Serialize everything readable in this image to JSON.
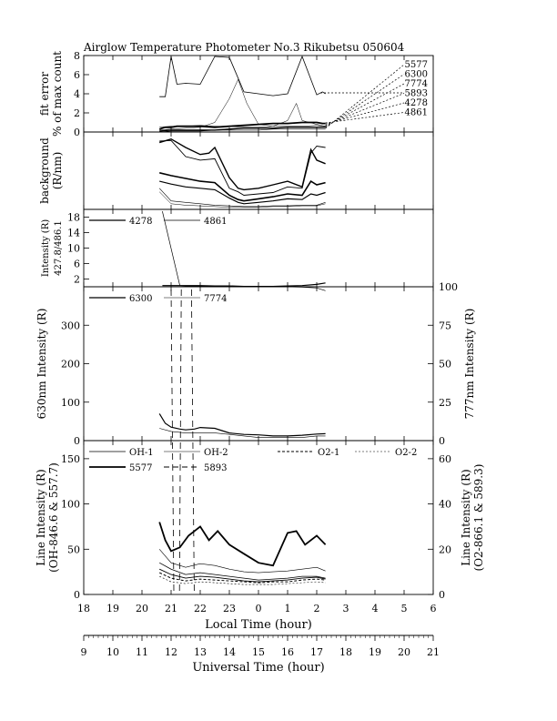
{
  "title": "Airglow Temperature Photometer No.3  Rikubetsu  050604",
  "chart_data": [
    {
      "type": "line",
      "panel": "fit error",
      "ylabel_lines": [
        "fit error",
        "% of max count"
      ],
      "ylim": [
        0,
        8
      ],
      "yticks": [
        0,
        2,
        4,
        6,
        8
      ],
      "series": [
        {
          "name": "5577",
          "x": [
            20.6,
            20.8,
            21.0,
            21.2,
            21.5,
            22.0,
            22.5,
            23.0,
            23.5,
            0.0,
            0.5,
            1.0,
            1.5,
            2.0,
            2.2,
            2.3
          ],
          "y": [
            0.3,
            0.5,
            0.5,
            0.6,
            0.6,
            0.6,
            0.5,
            0.6,
            0.7,
            0.8,
            0.9,
            0.9,
            1.0,
            1.0,
            0.9,
            0.9
          ]
        },
        {
          "name": "6300",
          "x": [
            20.6,
            20.8,
            21.0,
            21.2,
            21.5,
            22.0,
            22.5,
            23.0,
            23.5,
            0.0,
            0.5,
            1.0,
            1.5,
            2.0,
            2.2,
            2.3
          ],
          "y": [
            3.7,
            3.7,
            7.9,
            5.0,
            5.1,
            5.0,
            7.9,
            7.8,
            4.2,
            4.0,
            3.8,
            4.0,
            7.9,
            3.9,
            4.2,
            4.0
          ]
        },
        {
          "name": "7774",
          "x": [
            20.6,
            21.0,
            21.5,
            22.0,
            22.5,
            23.0,
            23.5,
            0.0,
            0.5,
            1.0,
            1.5,
            2.0,
            2.3
          ],
          "y": [
            0.5,
            0.6,
            0.6,
            0.7,
            0.6,
            0.6,
            0.5,
            0.5,
            0.6,
            0.6,
            0.6,
            0.7,
            0.6
          ]
        },
        {
          "name": "5893",
          "x": [
            20.6,
            21.0,
            21.5,
            22.0,
            22.5,
            23.0,
            23.3,
            23.6,
            0.0,
            0.5,
            1.0,
            1.3,
            1.5,
            2.0,
            2.3
          ],
          "y": [
            0.2,
            0.3,
            0.4,
            0.5,
            1.0,
            3.5,
            5.5,
            3.0,
            0.8,
            0.6,
            1.2,
            3.0,
            1.2,
            0.8,
            0.6
          ]
        },
        {
          "name": "4278",
          "x": [
            20.6,
            21.0,
            21.5,
            22.0,
            22.5,
            23.0,
            23.5,
            0.0,
            0.5,
            1.0,
            1.5,
            2.0,
            2.3
          ],
          "y": [
            0.1,
            0.2,
            0.2,
            0.2,
            0.2,
            0.3,
            0.4,
            0.4,
            0.4,
            0.5,
            0.5,
            0.5,
            0.5
          ]
        },
        {
          "name": "4861",
          "x": [
            20.6,
            21.0,
            21.5,
            22.0,
            22.5,
            23.0,
            23.5,
            0.0,
            0.5,
            1.0,
            1.5,
            2.0,
            2.3
          ],
          "y": [
            0.0,
            0.1,
            0.1,
            0.1,
            0.2,
            0.2,
            0.2,
            0.2,
            0.3,
            0.3,
            0.3,
            0.3,
            0.3
          ]
        }
      ],
      "legend_labels": [
        "5577",
        "6300",
        "7774",
        "5893",
        "4278",
        "4861"
      ],
      "legend_placement": "right, outside plot"
    },
    {
      "type": "line",
      "panel": "background",
      "ylabel_lines": [
        "background",
        "(R/nm)"
      ],
      "series": [
        {
          "x": [
            20.6,
            21.0,
            21.5,
            22.0,
            22.3,
            22.5,
            23.0,
            23.3,
            23.5,
            0.0,
            0.5,
            1.0,
            1.5,
            1.8,
            2.0,
            2.3
          ],
          "y": [
            95,
            100,
            88,
            78,
            80,
            88,
            45,
            30,
            28,
            30,
            35,
            40,
            32,
            85,
            70,
            65
          ]
        },
        {
          "x": [
            20.6,
            21.0,
            21.5,
            22.0,
            22.5,
            23.0,
            23.3,
            23.5,
            0.0,
            0.5,
            1.0,
            1.5,
            1.8,
            2.0,
            2.3
          ],
          "y": [
            97,
            98,
            75,
            70,
            72,
            30,
            25,
            20,
            22,
            24,
            32,
            30,
            80,
            90,
            88
          ]
        },
        {
          "x": [
            20.6,
            21.0,
            21.5,
            22.0,
            22.5,
            23.0,
            23.3,
            23.5,
            0.0,
            0.5,
            1.0,
            1.5,
            1.8,
            2.0,
            2.3
          ],
          "y": [
            52,
            48,
            44,
            40,
            38,
            20,
            14,
            12,
            15,
            18,
            22,
            20,
            40,
            35,
            38
          ]
        },
        {
          "x": [
            20.6,
            21.0,
            21.5,
            22.0,
            22.5,
            23.0,
            23.3,
            23.5,
            0.0,
            0.5,
            1.0,
            1.5,
            1.8,
            2.0,
            2.3
          ],
          "y": [
            40,
            36,
            32,
            30,
            28,
            16,
            10,
            8,
            10,
            12,
            15,
            14,
            22,
            20,
            24
          ]
        },
        {
          "x": [
            20.6,
            21.0,
            21.5,
            22.0,
            22.5,
            23.0,
            23.5,
            0.0,
            0.5,
            1.0,
            1.5,
            2.0,
            2.3
          ],
          "y": [
            30,
            12,
            10,
            8,
            6,
            5,
            4,
            4,
            5,
            5,
            6,
            6,
            10
          ]
        },
        {
          "x": [
            20.6,
            21.0,
            21.5,
            22.0,
            22.5,
            23.0,
            23.5,
            0.0,
            0.5,
            1.0,
            1.5,
            2.0,
            2.3
          ],
          "y": [
            25,
            8,
            6,
            5,
            4,
            3,
            3,
            3,
            4,
            4,
            5,
            5,
            8
          ]
        }
      ]
    },
    {
      "type": "line",
      "panel": "427.8/486.1 intensity",
      "ylabel_lines": [
        "Intensity (R)",
        "427.8/486.1"
      ],
      "ylim": [
        0,
        20
      ],
      "yticks": [
        2,
        6,
        10,
        14,
        18
      ],
      "series": [
        {
          "name": "4278",
          "x": [
            20.7,
            21.0,
            21.5,
            22.0,
            22.5,
            23.0,
            23.5,
            0.0,
            0.5,
            1.0,
            1.5,
            2.0,
            2.3
          ],
          "y": [
            0.3,
            0.3,
            0.3,
            0.3,
            0.2,
            0.2,
            0.1,
            0.1,
            0.1,
            0.2,
            0.3,
            0.6,
            1.0
          ]
        },
        {
          "name": "4861",
          "x": [
            20.7,
            21.3,
            21.5,
            22.0,
            22.5,
            23.0,
            23.5,
            0.0,
            0.5,
            1.0,
            1.5,
            2.0,
            2.3
          ],
          "y": [
            19.5,
            0.3,
            0.2,
            0.2,
            0.2,
            0.1,
            0.1,
            0.1,
            0.0,
            0.0,
            -0.1,
            -0.3,
            -1.0
          ]
        }
      ]
    },
    {
      "type": "line",
      "panel": "630/777 intensity",
      "ylabel": "630nm Intensity (R)",
      "y2label": "777nm Intensity (R)",
      "ylim": [
        0,
        400
      ],
      "yticks": [
        0,
        100,
        200,
        300
      ],
      "y2lim": [
        0,
        100
      ],
      "y2ticks": [
        0,
        25,
        50,
        75,
        100
      ],
      "series": [
        {
          "name": "6300",
          "axis": "left",
          "x": [
            20.6,
            20.8,
            21.0,
            21.3,
            21.5,
            21.8,
            22.0,
            22.5,
            23.0,
            23.5,
            0.0,
            0.5,
            1.0,
            1.5,
            2.0,
            2.3
          ],
          "y": [
            70,
            45,
            35,
            30,
            28,
            30,
            34,
            32,
            20,
            16,
            15,
            12,
            12,
            14,
            17,
            18
          ]
        },
        {
          "name": "7774",
          "axis": "right",
          "x": [
            20.6,
            21.0,
            21.5,
            22.0,
            22.5,
            23.0,
            23.5,
            0.0,
            0.5,
            1.0,
            1.5,
            2.0,
            2.3
          ],
          "y": [
            8,
            6,
            5,
            5,
            5,
            4,
            3,
            2,
            2,
            2,
            2,
            3,
            3
          ]
        }
      ]
    },
    {
      "type": "line",
      "panel": "line intensity",
      "ylabel_lines": [
        "Line Intensity (R)",
        "(OH-846.6 & 557.7)"
      ],
      "y2label_lines": [
        "Line Intensity (R)",
        "(O2-866.1 & 589.3)"
      ],
      "ylim": [
        0,
        170
      ],
      "yticks": [
        0,
        50,
        100,
        150
      ],
      "y2lim": [
        0,
        68
      ],
      "y2ticks": [
        0,
        20,
        40,
        60
      ],
      "series": [
        {
          "name": "OH-1",
          "x": [
            20.6,
            21.0,
            21.5,
            22.0,
            22.5,
            23.0,
            23.5,
            0.0,
            0.5,
            1.0,
            1.5,
            2.0,
            2.3
          ],
          "y": [
            35,
            28,
            22,
            24,
            22,
            20,
            18,
            16,
            17,
            18,
            20,
            20,
            18
          ]
        },
        {
          "name": "OH-2",
          "x": [
            20.6,
            21.0,
            21.5,
            22.0,
            22.5,
            23.0,
            23.5,
            0.0,
            0.5,
            1.0,
            1.5,
            2.0,
            2.3
          ],
          "y": [
            50,
            35,
            30,
            34,
            32,
            28,
            25,
            24,
            25,
            26,
            28,
            30,
            26
          ]
        },
        {
          "name": "O2-1",
          "x": [
            20.6,
            21.0,
            21.5,
            22.0,
            22.5,
            23.0,
            23.5,
            0.0,
            0.5,
            1.0,
            1.5,
            2.0,
            2.3
          ],
          "y": [
            24,
            18,
            15,
            17,
            16,
            15,
            14,
            13,
            14,
            14,
            16,
            17,
            16
          ]
        },
        {
          "name": "O2-2",
          "x": [
            20.6,
            21.0,
            21.5,
            22.0,
            22.5,
            23.0,
            23.5,
            0.0,
            0.5,
            1.0,
            1.5,
            2.0,
            2.3
          ],
          "y": [
            20,
            14,
            12,
            14,
            13,
            12,
            11,
            11,
            11,
            12,
            13,
            14,
            13
          ]
        },
        {
          "name": "5577",
          "x": [
            20.6,
            20.8,
            21.0,
            21.3,
            21.6,
            22.0,
            22.3,
            22.6,
            23.0,
            23.5,
            0.0,
            0.5,
            1.0,
            1.3,
            1.6,
            2.0,
            2.3
          ],
          "y": [
            80,
            60,
            48,
            52,
            65,
            75,
            60,
            70,
            55,
            45,
            35,
            32,
            68,
            70,
            55,
            65,
            55
          ]
        },
        {
          "name": "5893",
          "x": [
            20.6,
            21.0,
            21.5,
            22.0,
            22.5,
            23.0,
            23.5,
            0.0,
            0.5,
            1.0,
            1.5,
            2.0,
            2.3
          ],
          "y": [
            28,
            22,
            18,
            20,
            19,
            17,
            15,
            14,
            15,
            16,
            18,
            19,
            17
          ]
        }
      ],
      "legend_placement": "top"
    }
  ],
  "x_axes": {
    "local_time_label": "Local Time (hour)",
    "local_time_ticks": [
      "18",
      "19",
      "20",
      "21",
      "22",
      "23",
      "0",
      "1",
      "2",
      "3",
      "4",
      "5",
      "6"
    ],
    "universal_time_label": "Universal Time (hour)",
    "universal_time_ticks": [
      "9",
      "10",
      "11",
      "12",
      "13",
      "14",
      "15",
      "16",
      "17",
      "18",
      "19",
      "20",
      "21"
    ]
  }
}
